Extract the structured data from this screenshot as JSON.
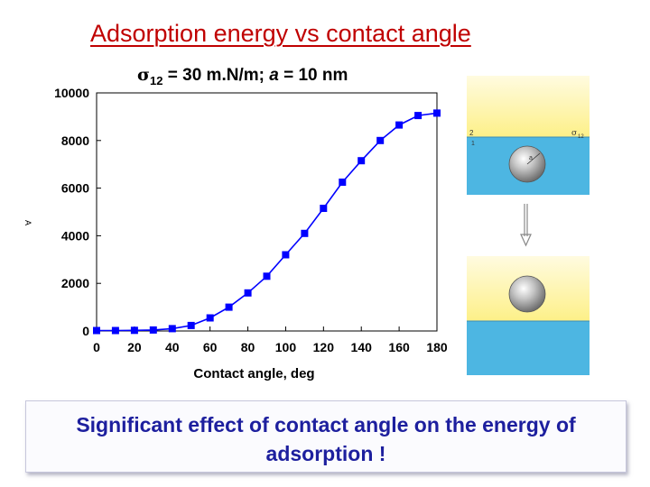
{
  "slide": {
    "title": "Adsorption energy vs contact angle",
    "subtitle": {
      "sigma_symbol": "σ",
      "sigma_sub": "12",
      "text1": " = 30 m.N/m; ",
      "a_symbol": "a",
      "text2": " = 10 nm"
    },
    "caption": "Significant effect of contact angle on the energy of adsorption !"
  },
  "diagram": {
    "top": {
      "phase_upper": "2",
      "phase_lower": "1",
      "sigma_label": "σ",
      "sigma_sub": "12",
      "radius_label": "a"
    },
    "colors": {
      "upper_phase": "#fdf088",
      "lower_phase": "#4db6e2",
      "particle": "#bdbdbd"
    }
  },
  "chart_data": {
    "type": "line",
    "title": "",
    "xlabel": "Contact angle, deg",
    "ylabel": "A",
    "xlim": [
      0,
      180
    ],
    "ylim": [
      0,
      10000
    ],
    "xticks": [
      "0",
      "20",
      "40",
      "60",
      "80",
      "100",
      "120",
      "140",
      "160",
      "180"
    ],
    "yticks": [
      "0",
      "2000",
      "4000",
      "6000",
      "8000",
      "10000"
    ],
    "grid": false,
    "marker": "square",
    "color": "#0000ff",
    "x": [
      0,
      10,
      20,
      30,
      40,
      50,
      60,
      70,
      80,
      90,
      100,
      110,
      120,
      130,
      140,
      150,
      160,
      170,
      180
    ],
    "y": [
      20,
      20,
      25,
      40,
      100,
      230,
      550,
      1000,
      1600,
      2300,
      3200,
      4100,
      5150,
      6250,
      7150,
      8000,
      8650,
      9050,
      9150
    ]
  }
}
